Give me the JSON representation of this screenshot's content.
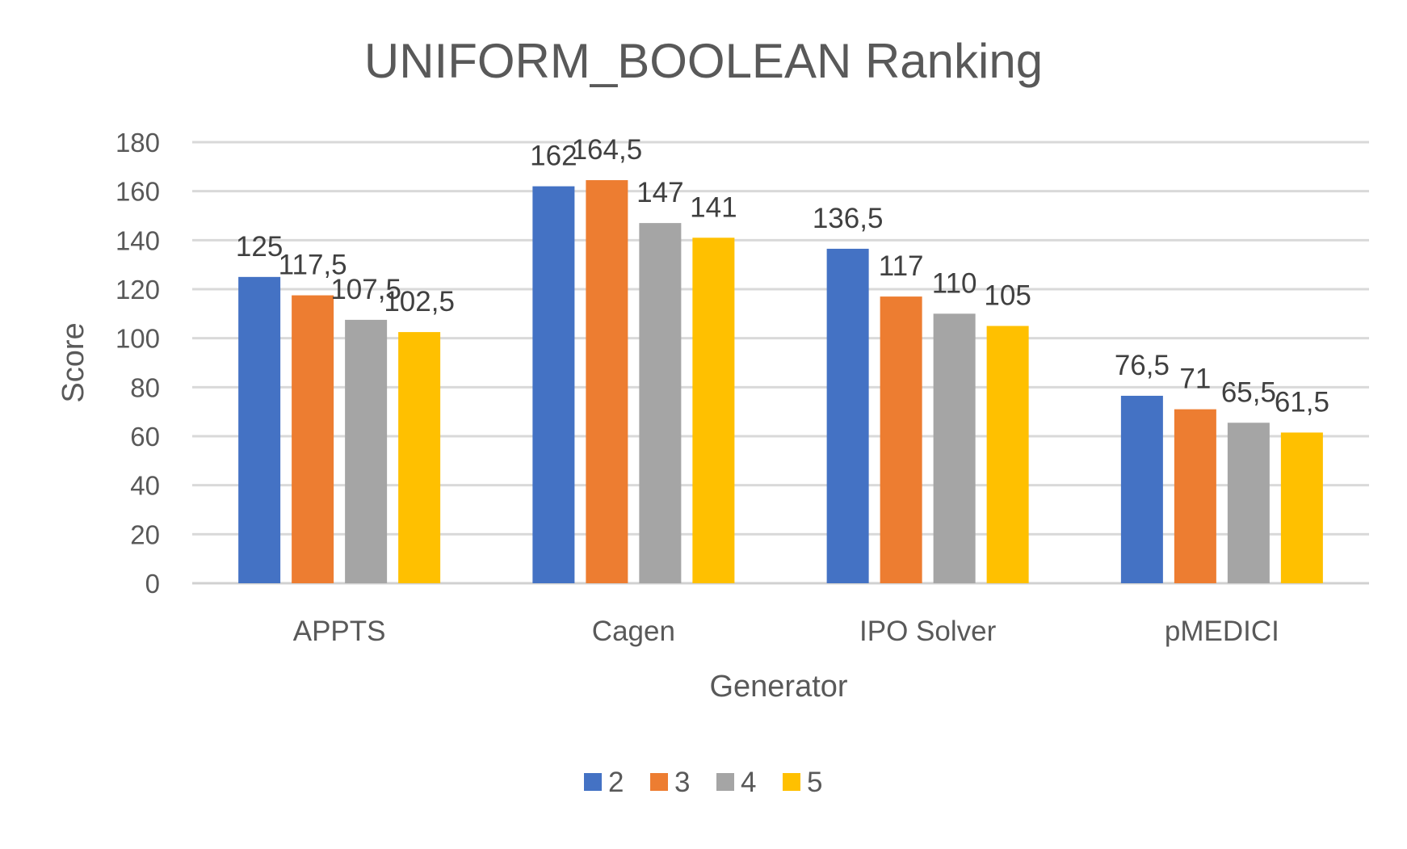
{
  "chart_data": {
    "type": "bar",
    "title": "UNIFORM_BOOLEAN Ranking",
    "xlabel": "Generator",
    "ylabel": "Score",
    "ylim": [
      0,
      180
    ],
    "ytick_step": 20,
    "yticks": [
      "0",
      "20",
      "40",
      "60",
      "80",
      "100",
      "120",
      "140",
      "160",
      "180"
    ],
    "grid": true,
    "legend_position": "bottom",
    "categories": [
      "APPTS",
      "Cagen",
      "IPO Solver",
      "pMEDICI"
    ],
    "series": [
      {
        "name": "2",
        "color": "#4472C4",
        "values": [
          125,
          162,
          136.5,
          76.5
        ],
        "labels": [
          "125",
          "162",
          "136,5",
          "76,5"
        ]
      },
      {
        "name": "3",
        "color": "#ED7D31",
        "values": [
          117.5,
          164.5,
          117,
          71
        ],
        "labels": [
          "117,5",
          "164,5",
          "117",
          "71"
        ]
      },
      {
        "name": "4",
        "color": "#A5A5A5",
        "values": [
          107.5,
          147,
          110,
          65.5
        ],
        "labels": [
          "107,5",
          "147",
          "110",
          "65,5"
        ]
      },
      {
        "name": "5",
        "color": "#FFC000",
        "values": [
          102.5,
          141,
          105,
          61.5
        ],
        "labels": [
          "102,5",
          "141",
          "105",
          "61,5"
        ]
      }
    ]
  }
}
